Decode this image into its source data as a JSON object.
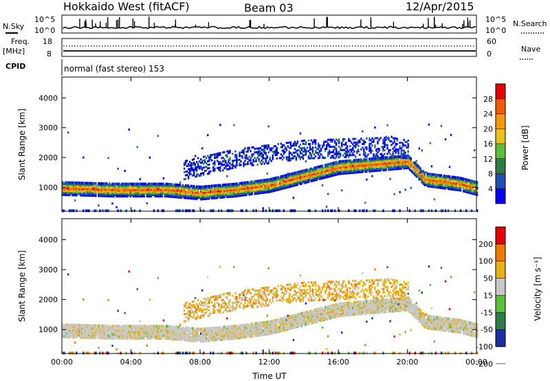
{
  "header": {
    "station": "Hokkaido West (fitACF)",
    "beam": "Beam 03",
    "date": "12/Apr/2015"
  },
  "labels": {
    "nsky": "N.Sky",
    "nsearch": "N.Search",
    "freq": "Freq.",
    "freq_unit": "[MHz]",
    "nave": "Nave",
    "cpid": "CPID",
    "cpid_value": "normal (fast stereo) 153"
  },
  "noise_ticks_left": [
    "10^5",
    "10^0"
  ],
  "noise_ticks_right": [
    "10^5",
    "10^0"
  ],
  "freq_ticks": [
    "18",
    "8"
  ],
  "nave_ticks": [
    "60",
    "0"
  ],
  "chart_data": [
    {
      "type": "heatmap",
      "panel": "power",
      "ylabel": "Slant Range [km]",
      "ylim": [
        200,
        4700
      ],
      "yticks": [
        "4000",
        "3000",
        "2000",
        "1000"
      ],
      "xlim": [
        "00:00",
        "24:00"
      ],
      "colorbar_label": "Power [dB]",
      "colorbar_ticks": [
        "28",
        "24",
        "20",
        "16",
        "12",
        "8",
        "4"
      ],
      "colorbar_colors": [
        "#0000ff",
        "#1f4fb4",
        "#2e7d46",
        "#5cbf3a",
        "#e6c21a",
        "#f59a0c",
        "#f05a00",
        "#e60000"
      ],
      "echo_bands": [
        {
          "range_km": [
            [
              0,
              1000
            ],
            [
              3,
              950
            ],
            [
              6,
              950
            ],
            [
              8,
              850
            ],
            [
              10,
              950
            ],
            [
              12,
              1100
            ],
            [
              16,
              1700
            ],
            [
              20,
              1900
            ],
            [
              21,
              1300
            ],
            [
              23,
              1150
            ],
            [
              24,
              1000
            ]
          ],
          "peak_power_db": 28
        },
        {
          "range_km": [
            [
              7,
              1600
            ],
            [
              10,
              2000
            ],
            [
              14,
              2300
            ],
            [
              19,
              2400
            ],
            [
              20,
              2300
            ]
          ],
          "peak_power_db": 8
        }
      ]
    },
    {
      "type": "heatmap",
      "panel": "velocity",
      "ylabel": "Slant Range [km]",
      "ylim": [
        200,
        4700
      ],
      "yticks": [
        "4000",
        "3000",
        "2000",
        "1000"
      ],
      "xlim": [
        "00:00",
        "24:00"
      ],
      "xlabel": "Time UT",
      "xticks": [
        "00:00",
        "04:00",
        "08:00",
        "12:00",
        "16:00",
        "20:00",
        "00:00"
      ],
      "colorbar_label": "Velocity [m s⁻¹]",
      "colorbar_ticks": [
        "200",
        "100",
        "50",
        "15",
        "-15",
        "-50",
        "-100",
        "-200"
      ],
      "colorbar_colors": [
        "#1a2fa0",
        "#2e7d46",
        "#5cbf3a",
        "#c8c8c8",
        "#e6b21a",
        "#f07a00",
        "#e60000"
      ]
    }
  ]
}
